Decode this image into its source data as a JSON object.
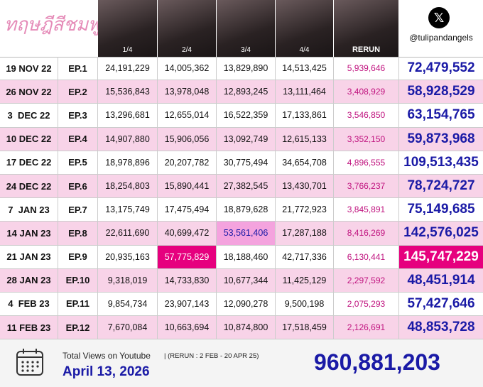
{
  "header": {
    "logo": "ทฤษฎีสีชมพู",
    "columns": [
      "1/4",
      "2/4",
      "3/4",
      "4/4",
      "RERUN"
    ],
    "handle": "@tulipandangels"
  },
  "rows": [
    {
      "date": "19 NOV 22",
      "episode": "EP.1",
      "views": [
        "24,191,229",
        "14,005,362",
        "13,829,890",
        "14,513,425"
      ],
      "rerun": "5,939,646",
      "total": "72,479,552"
    },
    {
      "date": "26 NOV 22",
      "episode": "EP.2",
      "views": [
        "15,536,843",
        "13,978,048",
        "12,893,245",
        "13,111,464"
      ],
      "rerun": "3,408,929",
      "total": "58,928,529"
    },
    {
      "date": "3  DEC 22",
      "episode": "EP.3",
      "views": [
        "13,296,681",
        "12,655,014",
        "16,522,359",
        "17,133,861"
      ],
      "rerun": "3,546,850",
      "total": "63,154,765"
    },
    {
      "date": "10 DEC 22",
      "episode": "EP.4",
      "views": [
        "14,907,880",
        "15,906,056",
        "13,092,749",
        "12,615,133"
      ],
      "rerun": "3,352,150",
      "total": "59,873,968"
    },
    {
      "date": "17 DEC 22",
      "episode": "EP.5",
      "views": [
        "18,978,896",
        "20,207,782",
        "30,775,494",
        "34,654,708"
      ],
      "rerun": "4,896,555",
      "total": "109,513,435"
    },
    {
      "date": "24 DEC 22",
      "episode": "EP.6",
      "views": [
        "18,254,803",
        "15,890,441",
        "27,382,545",
        "13,430,701"
      ],
      "rerun": "3,766,237",
      "total": "78,724,727"
    },
    {
      "date": "7  JAN 23",
      "episode": "EP.7",
      "views": [
        "13,175,749",
        "17,475,494",
        "18,879,628",
        "21,772,923"
      ],
      "rerun": "3,845,891",
      "total": "75,149,685"
    },
    {
      "date": "14 JAN 23",
      "episode": "EP.8",
      "views": [
        "22,611,690",
        "40,699,472",
        "53,561,406",
        "17,287,188"
      ],
      "rerun": "8,416,269",
      "total": "142,576,025"
    },
    {
      "date": "21 JAN 23",
      "episode": "EP.9",
      "views": [
        "20,935,163",
        "57,775,829",
        "18,188,460",
        "42,717,336"
      ],
      "rerun": "6,130,441",
      "total": "145,747,229"
    },
    {
      "date": "28 JAN 23",
      "episode": "EP.10",
      "views": [
        "9,318,019",
        "14,733,830",
        "10,677,344",
        "11,425,129"
      ],
      "rerun": "2,297,592",
      "total": "48,451,914"
    },
    {
      "date": "4  FEB 23",
      "episode": "EP.11",
      "views": [
        "9,854,734",
        "23,907,143",
        "12,090,278",
        "9,500,198"
      ],
      "rerun": "2,075,293",
      "total": "57,427,646"
    },
    {
      "date": "11 FEB 23",
      "episode": "EP.12",
      "views": [
        "7,670,084",
        "10,663,694",
        "10,874,800",
        "17,518,459"
      ],
      "rerun": "2,126,691",
      "total": "48,853,728"
    }
  ],
  "footer": {
    "caption": "Total Views on Youtube",
    "rerun_note": "| (RERUN : 2 FEB - 20 APR 25)",
    "date": "April 13, 2026",
    "grand_total": "960,881,203"
  }
}
